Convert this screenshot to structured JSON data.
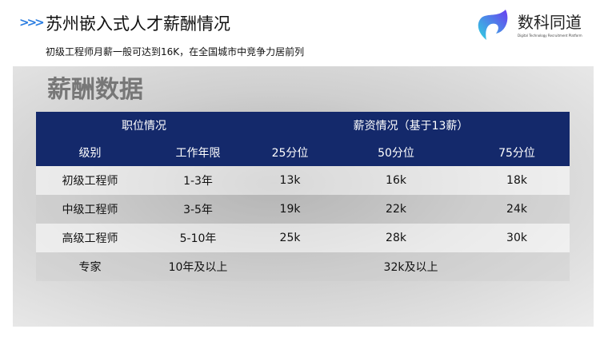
{
  "header": {
    "arrows": ">>>",
    "title": "苏州嵌入式人才薪酬情况",
    "subtitle": "初级工程师月薪一般可达到16K，在全国城市中竞争力居前列"
  },
  "logo": {
    "name": "数科同道",
    "tagline": "Digital Technology Recruitment Platform"
  },
  "panel": {
    "title": "薪酬数据"
  },
  "table": {
    "group_headers": [
      "职位情况",
      "薪资情况（基于13薪）"
    ],
    "columns": [
      "级别",
      "工作年限",
      "25分位",
      "50分位",
      "75分位"
    ],
    "rows": [
      [
        "初级工程师",
        "1-3年",
        "13k",
        "16k",
        "18k"
      ],
      [
        "中级工程师",
        "3-5年",
        "19k",
        "22k",
        "24k"
      ],
      [
        "高级工程师",
        "5-10年",
        "25k",
        "28k",
        "30k"
      ]
    ],
    "expert": {
      "level": "专家",
      "years": "10年及以上",
      "salary": "32k及以上"
    }
  },
  "colors": {
    "header_bg": "#14296b",
    "accent": "#2a7de1"
  }
}
